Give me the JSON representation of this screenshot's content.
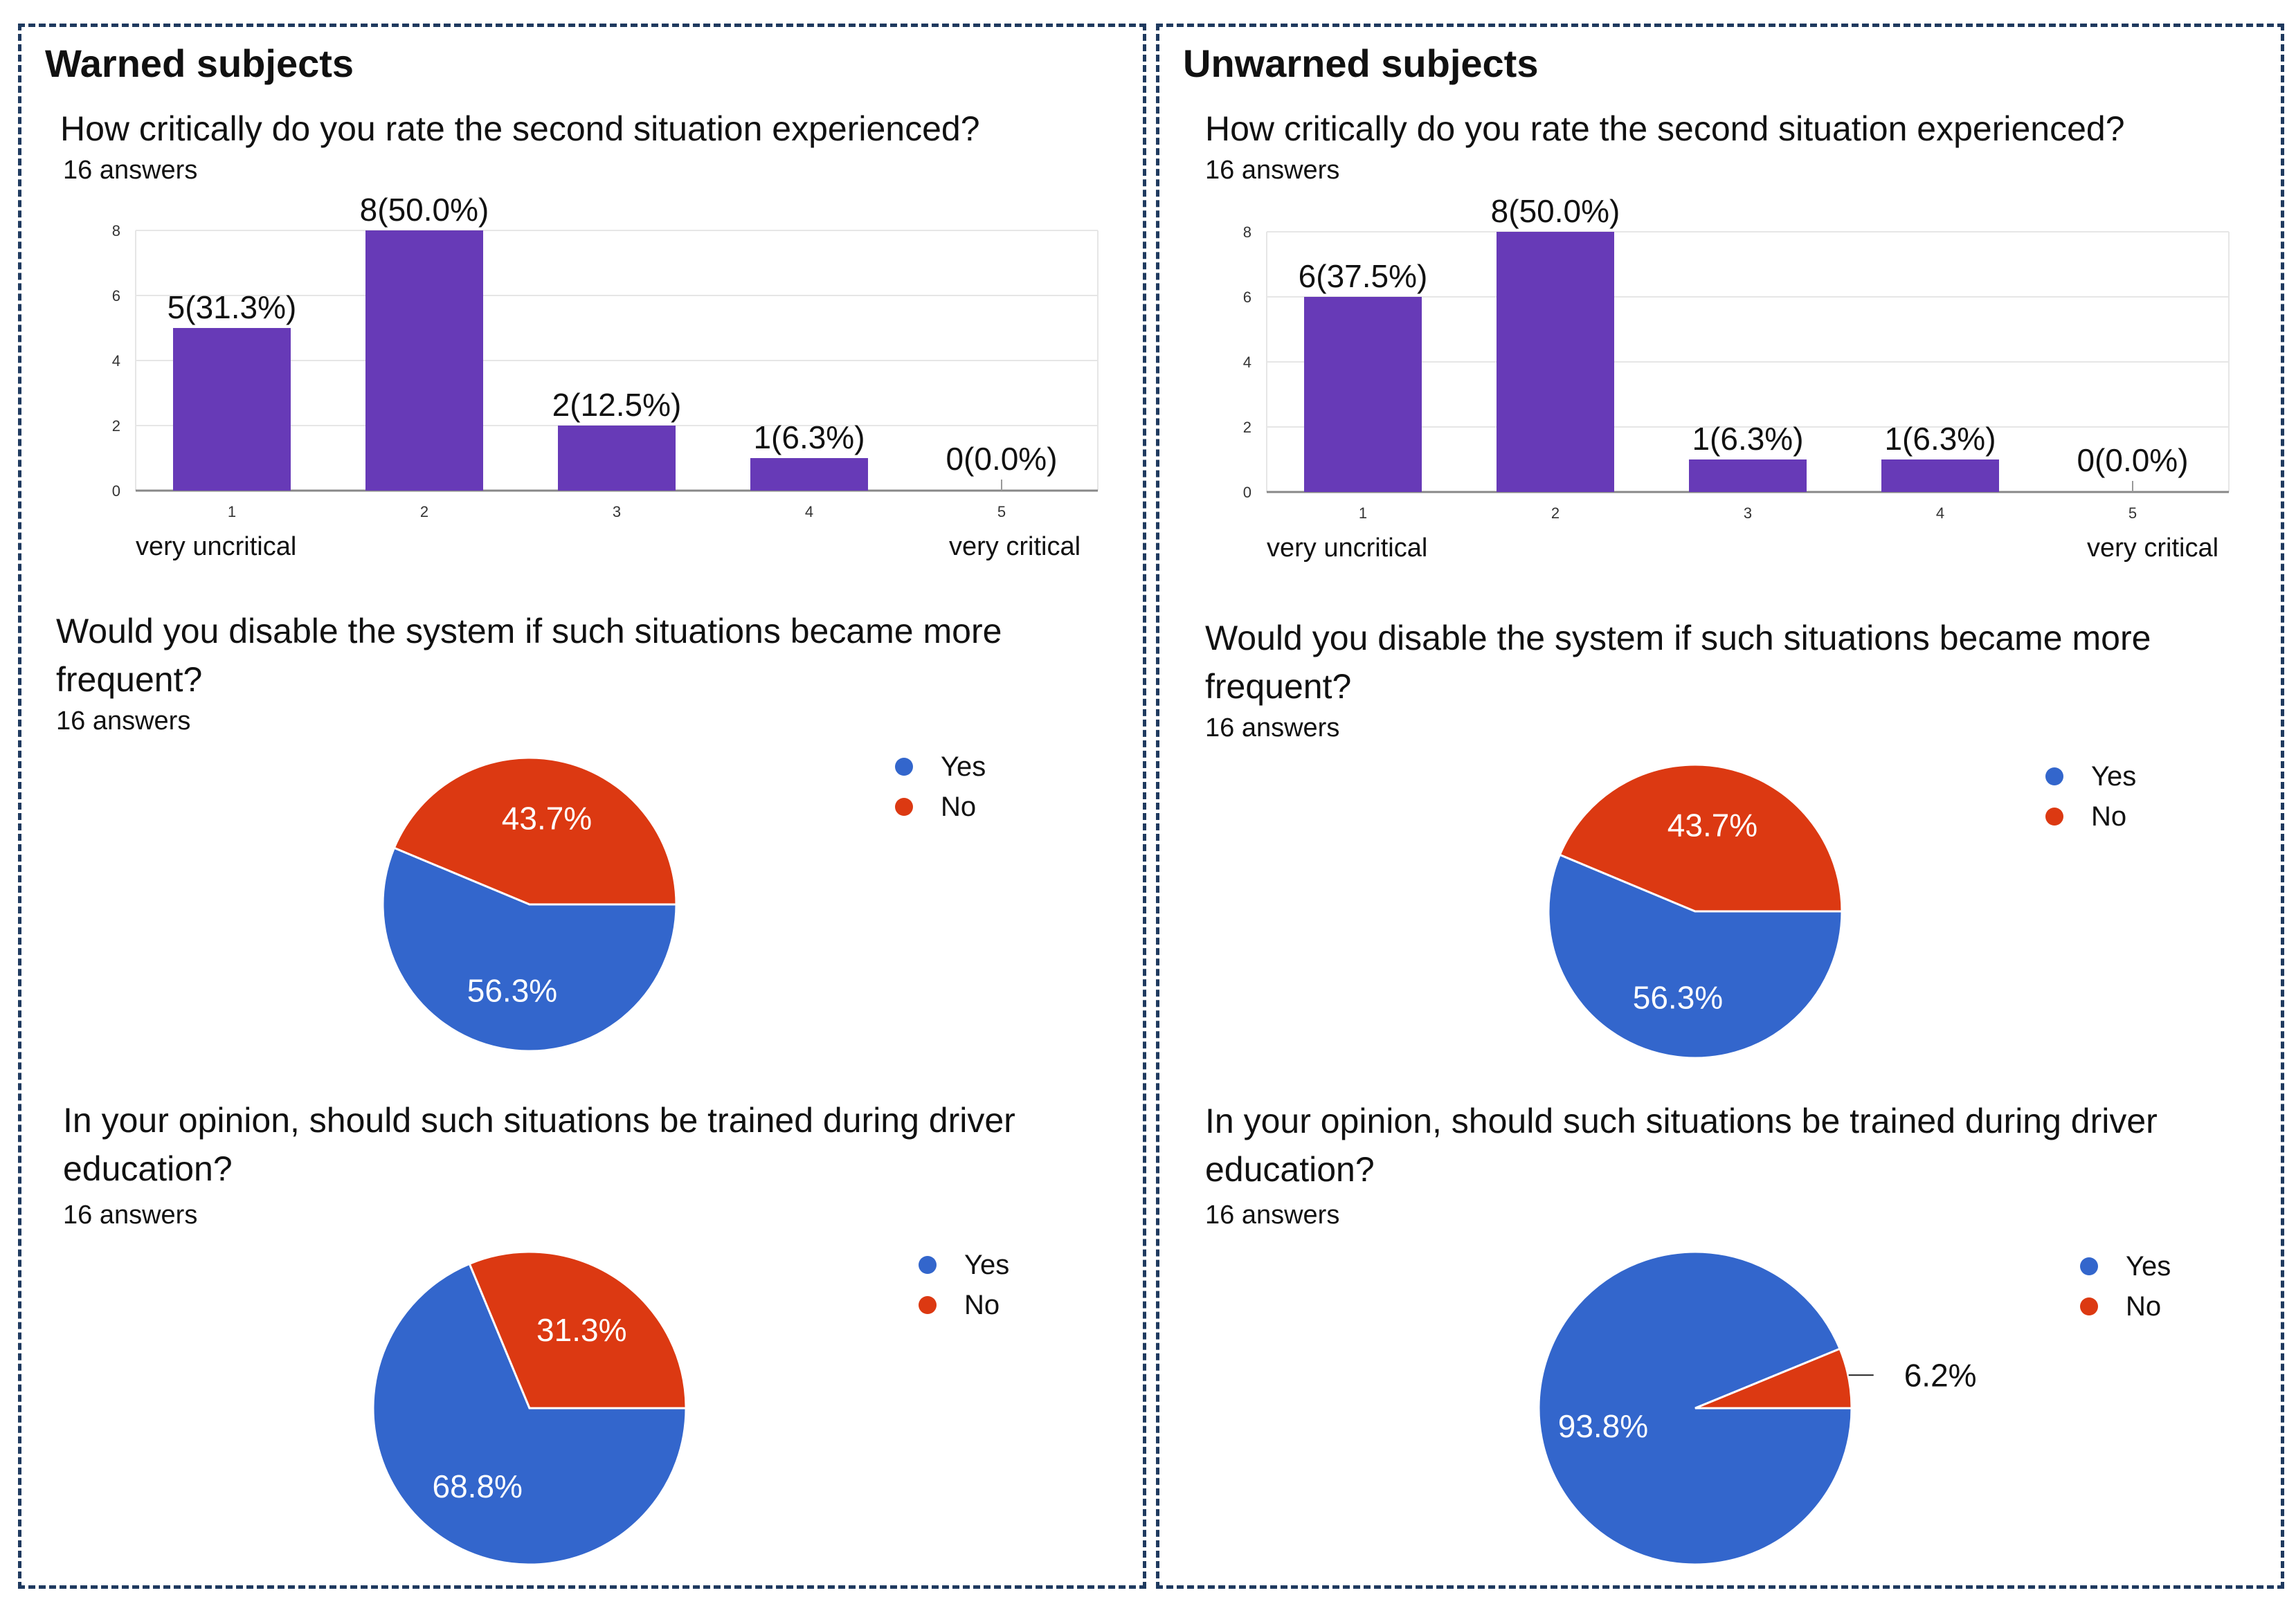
{
  "colors": {
    "bar": "#673ab7",
    "yes": "#3366cc",
    "no": "#dc3912",
    "grid": "#e6e6e6",
    "axis": "#888888"
  },
  "panels": [
    {
      "title": "Warned subjects",
      "q1": {
        "question": "How critically do you rate the second situation experienced?",
        "answers": "16 answers",
        "left_label": "very uncritical",
        "right_label": "very critical"
      },
      "q2": {
        "question": "Would you disable the system if such situations became more frequent?",
        "answers": "16 answers"
      },
      "q3": {
        "question": "In your opinion, should such situations be trained during driver education?",
        "answers": "16 answers"
      },
      "legend": [
        "Yes",
        "No"
      ]
    },
    {
      "title": "Unwarned subjects",
      "q1": {
        "question": "How critically do you rate the second situation experienced?",
        "answers": "16 answers",
        "left_label": "very uncritical",
        "right_label": "very critical"
      },
      "q2": {
        "question": "Would you disable the system if such situations became more frequent?",
        "answers": "16 answers"
      },
      "q3": {
        "question": "In your opinion, should such situations be trained during driver education?",
        "answers": "16 answers"
      },
      "legend": [
        "Yes",
        "No"
      ]
    }
  ],
  "chart_data": [
    {
      "type": "bar",
      "panel": "Warned subjects",
      "title": "How critically do you rate the second situation experienced?",
      "categories": [
        "1",
        "2",
        "3",
        "4",
        "5"
      ],
      "values": [
        5,
        8,
        2,
        1,
        0
      ],
      "labels": [
        "5(31.3%)",
        "8(50.0%)",
        "2(12.5%)",
        "1(6.3%)",
        "0(0.0%)"
      ],
      "yticks": [
        "0",
        "2",
        "4",
        "6",
        "8"
      ],
      "ylim": [
        0,
        8
      ]
    },
    {
      "type": "pie",
      "panel": "Warned subjects",
      "title": "Would you disable the system if such situations became more frequent?",
      "categories": [
        "Yes",
        "No"
      ],
      "values": [
        56.3,
        43.7
      ],
      "labels": [
        "56.3%",
        "43.7%"
      ]
    },
    {
      "type": "pie",
      "panel": "Warned subjects",
      "title": "In your opinion, should such situations be trained during driver education?",
      "categories": [
        "Yes",
        "No"
      ],
      "values": [
        68.8,
        31.3
      ],
      "labels": [
        "68.8%",
        "31.3%"
      ]
    },
    {
      "type": "bar",
      "panel": "Unwarned subjects",
      "title": "How critically do you rate the second situation experienced?",
      "categories": [
        "1",
        "2",
        "3",
        "4",
        "5"
      ],
      "values": [
        6,
        8,
        1,
        1,
        0
      ],
      "labels": [
        "6(37.5%)",
        "8(50.0%)",
        "1(6.3%)",
        "1(6.3%)",
        "0(0.0%)"
      ],
      "yticks": [
        "0",
        "2",
        "4",
        "6",
        "8"
      ],
      "ylim": [
        0,
        8
      ]
    },
    {
      "type": "pie",
      "panel": "Unwarned subjects",
      "title": "Would you disable the system if such situations became more frequent?",
      "categories": [
        "Yes",
        "No"
      ],
      "values": [
        56.3,
        43.7
      ],
      "labels": [
        "56.3%",
        "43.7%"
      ]
    },
    {
      "type": "pie",
      "panel": "Unwarned subjects",
      "title": "In your opinion, should such situations be trained during driver education?",
      "categories": [
        "Yes",
        "No"
      ],
      "values": [
        93.8,
        6.2
      ],
      "labels": [
        "93.8%",
        "6.2%"
      ]
    }
  ]
}
